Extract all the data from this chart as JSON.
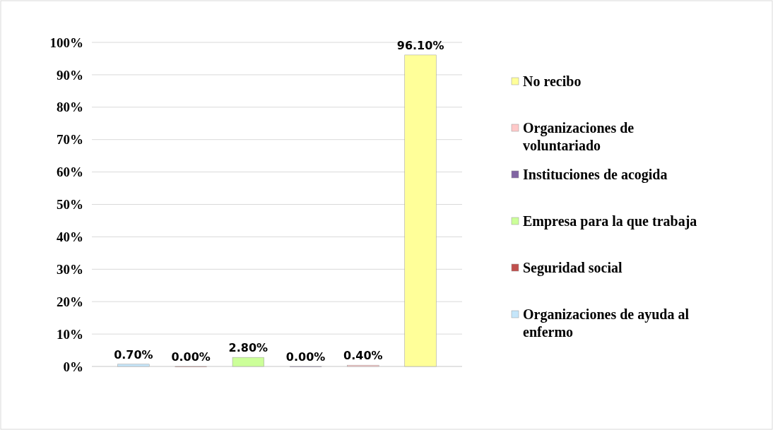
{
  "chart_data": {
    "type": "bar",
    "categories": [
      null,
      null,
      null,
      null,
      null,
      null
    ],
    "series": [
      {
        "name": "Organizaciones de ayuda al enfermo",
        "color": "#c5e6fa",
        "values": [
          0.7,
          null,
          null,
          null,
          null,
          null
        ],
        "value_labels": [
          "0.70%",
          null,
          null,
          null,
          null,
          null
        ]
      },
      {
        "name": "Seguridad social",
        "color": "#c0504d",
        "values": [
          null,
          0,
          null,
          null,
          null,
          null
        ],
        "value_labels": [
          null,
          "0.00%",
          null,
          null,
          null,
          null
        ]
      },
      {
        "name": "Empresa para la que trabaja",
        "color": "#ccff99",
        "values": [
          null,
          null,
          2.8,
          null,
          null,
          null
        ],
        "value_labels": [
          null,
          null,
          "2.80%",
          null,
          null,
          null
        ]
      },
      {
        "name": "Instituciones de acogida",
        "color": "#8064a2",
        "values": [
          null,
          null,
          null,
          0,
          null,
          null
        ],
        "value_labels": [
          null,
          null,
          null,
          "0.00%",
          null,
          null
        ]
      },
      {
        "name": "Organizaciones de voluntariado",
        "color": "#ffc9c9",
        "values": [
          null,
          null,
          null,
          null,
          0.4,
          null
        ],
        "value_labels": [
          null,
          null,
          null,
          null,
          "0.40%",
          null
        ]
      },
      {
        "name": "No recibo",
        "color": "#ffff99",
        "values": [
          null,
          null,
          null,
          null,
          null,
          96.1
        ],
        "value_labels": [
          null,
          null,
          null,
          null,
          null,
          "96.10%"
        ]
      }
    ],
    "ylim": [
      0,
      100
    ],
    "yticks": [
      {
        "value": 0,
        "label": "0%"
      },
      {
        "value": 10,
        "label": "10%"
      },
      {
        "value": 20,
        "label": "20%"
      },
      {
        "value": 30,
        "label": "30%"
      },
      {
        "value": 40,
        "label": "40%"
      },
      {
        "value": 50,
        "label": "50%"
      },
      {
        "value": 60,
        "label": "60%"
      },
      {
        "value": 70,
        "label": "70%"
      },
      {
        "value": 80,
        "label": "80%"
      },
      {
        "value": 90,
        "label": "90%"
      },
      {
        "value": 100,
        "label": "100%"
      }
    ],
    "grid": "y",
    "legend": "right",
    "tick_labels": "y"
  }
}
